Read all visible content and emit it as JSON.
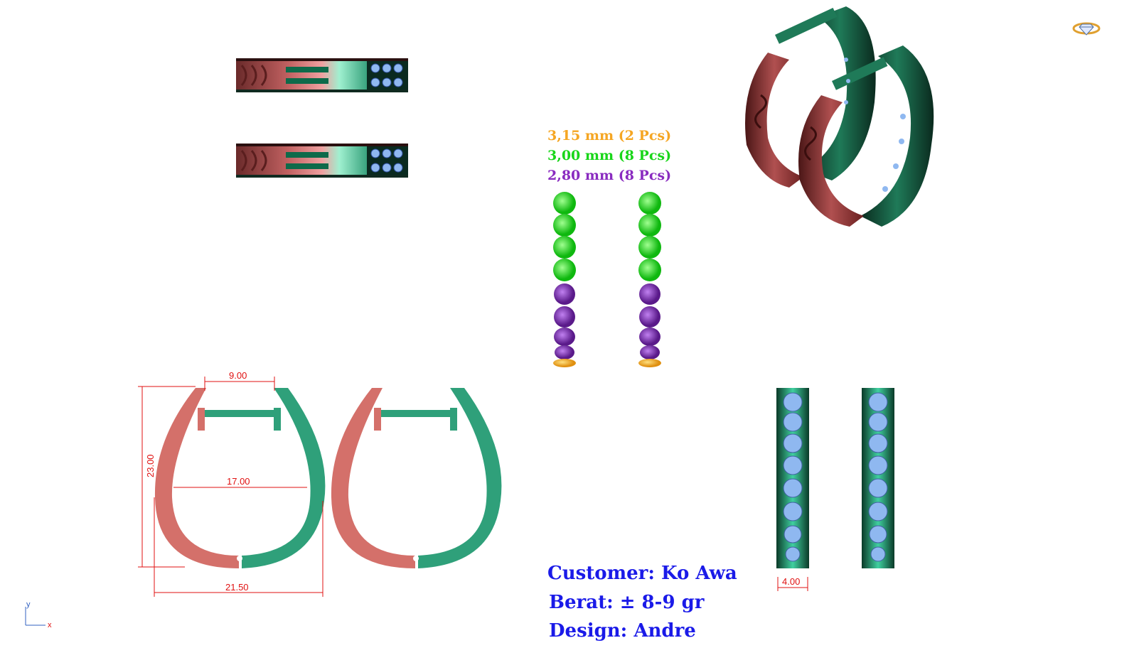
{
  "stone_legend": [
    {
      "text": "3,15 mm (2 Pcs)",
      "color": "#f5a623"
    },
    {
      "text": "3,00 mm (8 Pcs)",
      "color": "#19d619"
    },
    {
      "text": "2,80 mm (8 Pcs)",
      "color": "#8a2bc0"
    }
  ],
  "dimensions": {
    "top_width": "9.00",
    "inner_width": "17.00",
    "height": "23.00",
    "outer_width": "21.50",
    "band_width": "4.00"
  },
  "info": {
    "customer": "Customer: Ko Awa",
    "weight": "Berat: ± 8-9 gr",
    "design": "Design: Andre"
  },
  "axis": {
    "y": "y",
    "x": "x"
  },
  "colors": {
    "rose_gold": "#d4706a",
    "green_gold": "#2fa07a",
    "stone_blue": "#8fb8f0",
    "dimension_red": "#e01010",
    "info_blue": "#1a1ae8"
  }
}
